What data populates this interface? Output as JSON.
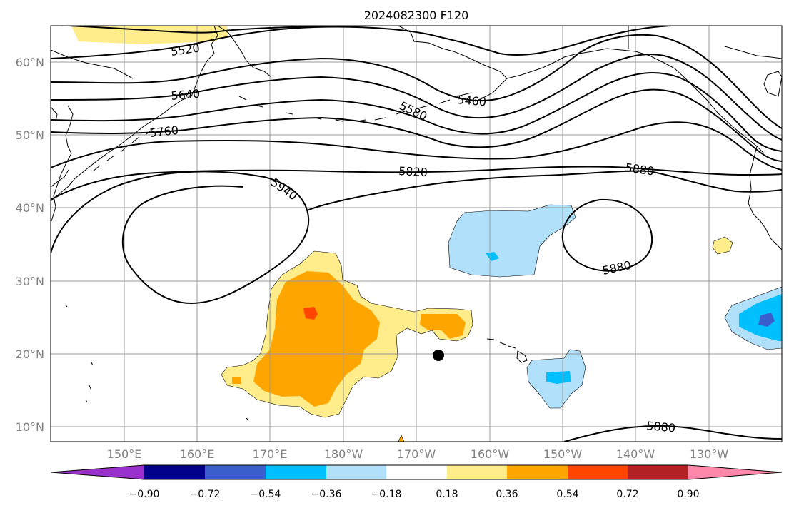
{
  "title": "2024082300 F120",
  "lat_ticks": [
    "10°N",
    "20°N",
    "30°N",
    "40°N",
    "50°N",
    "60°N"
  ],
  "lon_ticks": [
    "150°E",
    "160°E",
    "170°E",
    "180°W",
    "170°W",
    "160°W",
    "150°W",
    "140°W",
    "130°W"
  ],
  "contours": [
    {
      "value": 5520
    },
    {
      "value": 5640
    },
    {
      "value": 5760
    },
    {
      "value": 5460
    },
    {
      "value": 5580
    },
    {
      "value": 5820
    },
    {
      "value": 5880
    },
    {
      "value": 5940
    }
  ],
  "contour_labels": [
    "5520",
    "5640",
    "5760",
    "5460",
    "5580",
    "5820",
    "5880",
    "5940",
    "5880",
    "5880"
  ],
  "colorbar": {
    "ticks": [
      "−0.90",
      "−0.72",
      "−0.54",
      "−0.36",
      "−0.18",
      "0.18",
      "0.36",
      "0.54",
      "0.72",
      "0.90"
    ],
    "colors": [
      "#9932cc",
      "#00008b",
      "#3a5fcd",
      "#00bfff",
      "#b0e0fa",
      "#ffffff",
      "#ffec8b",
      "#ffa500",
      "#ff4500",
      "#b22222",
      "#ff88aa"
    ]
  },
  "marker": {
    "lat": 20,
    "lon": -167,
    "color": "#000000"
  }
}
